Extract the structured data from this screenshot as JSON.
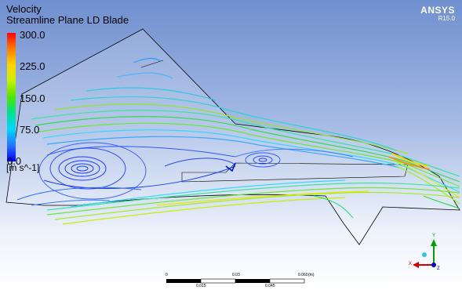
{
  "legend": {
    "title": "Velocity",
    "subtitle": "Streamline Plane LD Blade",
    "ticks": [
      "300.0",
      "225.0",
      "150.0",
      "75.0",
      "0.0"
    ],
    "units": "[m s^-1]"
  },
  "brand": {
    "name": "ANSYS",
    "version": "R15.0"
  },
  "scale_bar": {
    "top_labels": [
      "0",
      "0.03",
      "0.060"
    ],
    "unit": "(m)",
    "bottom_labels": [
      "0.015",
      "0.045"
    ]
  },
  "triad": {
    "x_label": "X",
    "y_label": "Y",
    "z_label": "Z"
  },
  "colors": {
    "background_top": "#6f8fcf",
    "background_bottom": "#ffffff",
    "colorbar_max": "#ff0000",
    "colorbar_min": "#0000ff",
    "axis_x": "#d40000",
    "axis_y": "#00a000",
    "axis_z": "#0000d0"
  }
}
